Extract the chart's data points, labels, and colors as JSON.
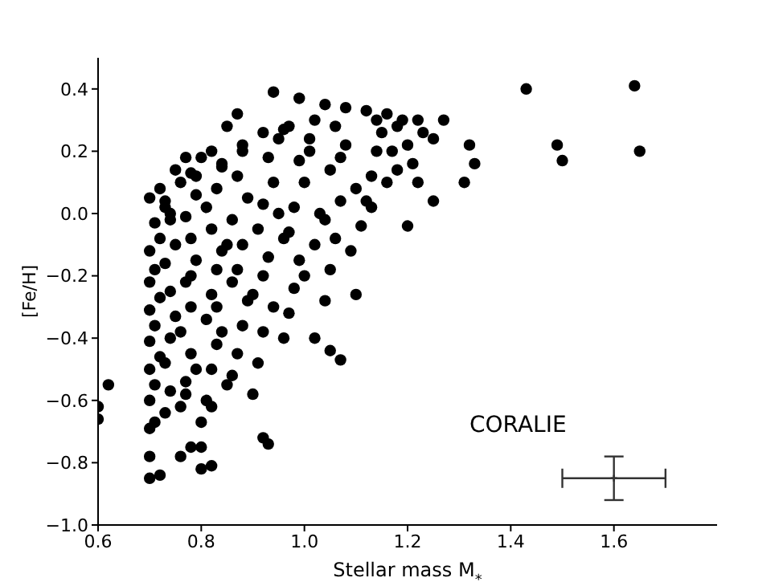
{
  "chart_data": {
    "type": "scatter",
    "xlabel": "Stellar mass M$_{*}$",
    "ylabel": "[Fe/H]",
    "annotations": [
      "CORALIE"
    ],
    "xlim": [
      0.6,
      1.8
    ],
    "ylim": [
      -1.0,
      0.5
    ],
    "xticks": [
      0.6,
      0.8,
      {
        "value": 1.0,
        "label": "1.0"
      },
      1.2,
      1.4,
      1.6
    ],
    "yticks": [
      {
        "value": -1.0,
        "label": "−1.0"
      },
      {
        "value": -0.8,
        "label": "−0.8"
      },
      {
        "value": -0.6,
        "label": "−0.6"
      },
      {
        "value": -0.4,
        "label": "−0.4"
      },
      {
        "value": -0.2,
        "label": "−0.2"
      },
      {
        "value": 0.0,
        "label": "0.0"
      },
      0.2,
      0.4
    ],
    "grid": false,
    "legend": false,
    "series": [
      {
        "type": "scatter",
        "marker": "circle",
        "color": "#000000",
        "x": [
          0.6,
          0.6,
          0.62,
          1.64,
          1.65,
          1.43,
          1.49,
          1.5,
          1.32,
          1.33,
          1.31,
          1.25,
          1.25,
          1.2,
          1.1,
          1.05,
          1.07,
          1.02,
          0.92,
          0.93,
          0.7,
          0.72,
          0.8,
          0.82,
          0.78,
          0.8,
          0.76,
          0.7,
          0.7,
          0.71,
          0.94,
          0.99,
          0.87,
          0.85,
          1.04,
          1.08,
          1.12,
          1.16,
          1.19,
          1.22,
          1.27,
          1.02,
          0.96,
          0.92,
          0.88,
          0.82,
          0.8,
          0.77,
          0.75,
          0.72,
          0.7,
          0.73,
          0.76,
          0.79,
          0.84,
          0.7,
          0.71,
          0.7,
          0.72,
          0.7,
          0.71,
          0.7,
          0.72,
          0.7,
          0.71,
          0.7,
          0.72,
          0.71,
          0.73,
          0.74,
          0.73,
          0.74,
          0.75,
          0.74,
          0.73,
          0.75,
          0.74,
          0.73,
          0.74,
          0.76,
          0.77,
          0.78,
          0.76,
          0.78,
          0.77,
          0.79,
          0.78,
          0.77,
          0.79,
          0.78,
          0.8,
          0.77,
          0.79,
          0.78,
          0.81,
          0.82,
          0.83,
          0.81,
          0.82,
          0.83,
          0.84,
          0.82,
          0.81,
          0.83,
          0.84,
          0.82,
          0.85,
          0.83,
          0.84,
          0.86,
          0.85,
          0.86,
          0.87,
          0.88,
          0.89,
          0.87,
          0.88,
          0.86,
          0.89,
          0.87,
          0.88,
          0.9,
          0.91,
          0.92,
          0.9,
          0.93,
          0.91,
          0.92,
          0.94,
          0.93,
          0.95,
          0.94,
          0.92,
          0.96,
          0.95,
          0.96,
          0.97,
          0.98,
          0.99,
          0.97,
          0.98,
          1.0,
          0.99,
          1.01,
          1.0,
          0.97,
          1.02,
          1.03,
          1.01,
          1.04,
          1.05,
          1.06,
          1.07,
          1.05,
          1.08,
          1.06,
          1.09,
          1.04,
          1.1,
          1.07,
          1.11,
          1.12,
          1.13,
          1.14,
          1.15,
          1.13,
          1.16,
          1.17,
          1.18,
          1.2,
          1.21,
          1.23,
          1.14,
          1.18,
          1.22
        ],
        "values": [
          -0.62,
          -0.66,
          -0.55,
          0.41,
          0.2,
          0.4,
          0.22,
          0.17,
          0.22,
          0.16,
          0.1,
          0.24,
          0.04,
          -0.04,
          -0.26,
          -0.44,
          -0.47,
          -0.4,
          -0.72,
          -0.74,
          -0.85,
          -0.84,
          -0.82,
          -0.81,
          -0.75,
          -0.75,
          -0.78,
          -0.78,
          -0.69,
          -0.67,
          0.39,
          0.37,
          0.32,
          0.28,
          0.35,
          0.34,
          0.33,
          0.32,
          0.3,
          0.3,
          0.3,
          0.3,
          0.27,
          0.26,
          0.22,
          0.2,
          0.18,
          0.18,
          0.14,
          0.08,
          0.05,
          0.02,
          0.1,
          0.12,
          0.15,
          -0.6,
          -0.55,
          -0.5,
          -0.46,
          -0.41,
          -0.36,
          -0.31,
          -0.27,
          -0.22,
          -0.18,
          -0.12,
          -0.08,
          -0.03,
          -0.64,
          -0.57,
          -0.48,
          -0.4,
          -0.33,
          -0.25,
          -0.16,
          -0.1,
          -0.02,
          0.04,
          0.0,
          -0.62,
          -0.54,
          -0.45,
          -0.38,
          -0.3,
          -0.22,
          -0.15,
          -0.08,
          -0.01,
          0.06,
          0.13,
          -0.67,
          -0.58,
          -0.5,
          -0.2,
          -0.6,
          -0.5,
          -0.42,
          -0.34,
          -0.26,
          -0.18,
          -0.12,
          -0.05,
          0.02,
          0.08,
          0.16,
          -0.62,
          -0.55,
          -0.3,
          -0.38,
          -0.22,
          -0.1,
          -0.52,
          -0.45,
          -0.36,
          -0.28,
          -0.18,
          -0.1,
          -0.02,
          0.05,
          0.12,
          0.2,
          -0.58,
          -0.48,
          -0.38,
          -0.26,
          -0.14,
          -0.05,
          0.03,
          0.1,
          0.18,
          0.24,
          -0.3,
          -0.2,
          -0.08,
          0.0,
          -0.4,
          -0.32,
          -0.24,
          -0.15,
          -0.06,
          0.02,
          0.1,
          0.17,
          0.24,
          -0.2,
          0.28,
          -0.1,
          0.0,
          0.2,
          -0.28,
          -0.18,
          -0.08,
          0.04,
          0.14,
          0.22,
          0.28,
          -0.12,
          -0.02,
          0.08,
          0.18,
          -0.04,
          0.04,
          0.12,
          0.2,
          0.26,
          0.02,
          0.1,
          0.2,
          0.14,
          0.22,
          0.16,
          0.26,
          0.3,
          0.28,
          0.1
        ]
      },
      {
        "type": "scatter",
        "marker": "cross",
        "color": "#333333",
        "x": [
          1.6
        ],
        "values": [
          -0.85
        ],
        "errors": [
          0.07
        ],
        "xerrors": [
          0.1
        ]
      }
    ]
  }
}
